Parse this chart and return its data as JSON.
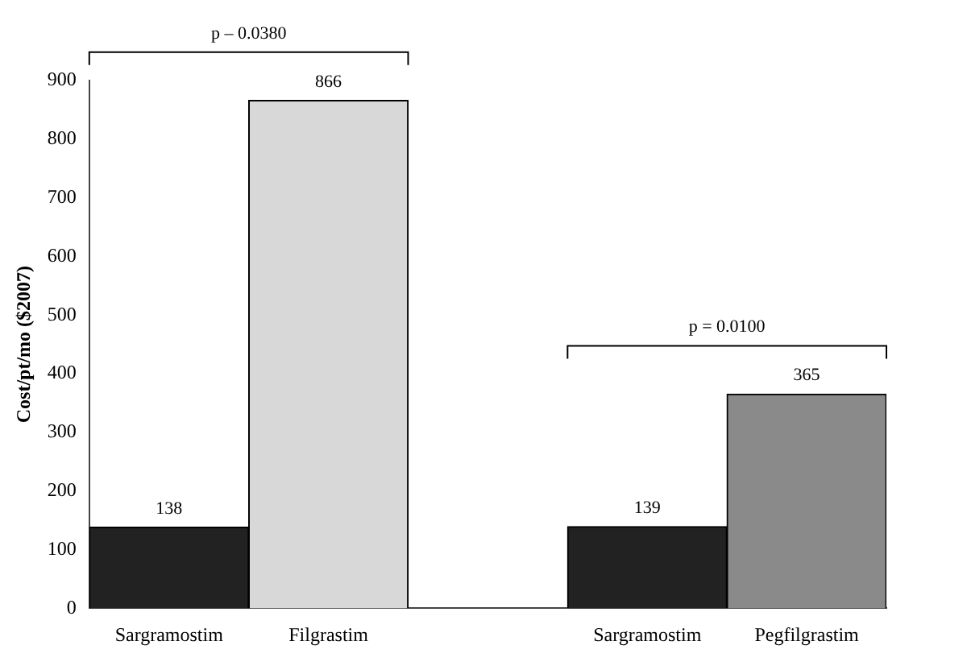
{
  "chart_data": {
    "type": "bar",
    "ylabel": "Cost/pt/mo ($2007)",
    "categories": [
      "Sargramostim",
      "Filgrastim",
      null,
      "Sargramostim",
      "Pegfilgrastim"
    ],
    "values": [
      138,
      866,
      null,
      139,
      365
    ],
    "colors": [
      "#222222",
      "#d8d8d8",
      "#ffffff",
      "#222222",
      "#8a8a8a"
    ],
    "ylim": [
      0,
      900
    ],
    "yticks": [
      0,
      100,
      200,
      300,
      400,
      500,
      600,
      700,
      800,
      900
    ],
    "grid": false,
    "legend": false,
    "data_labels": true,
    "annotations": [
      "p – 0.0380",
      "p = 0.0100"
    ]
  }
}
